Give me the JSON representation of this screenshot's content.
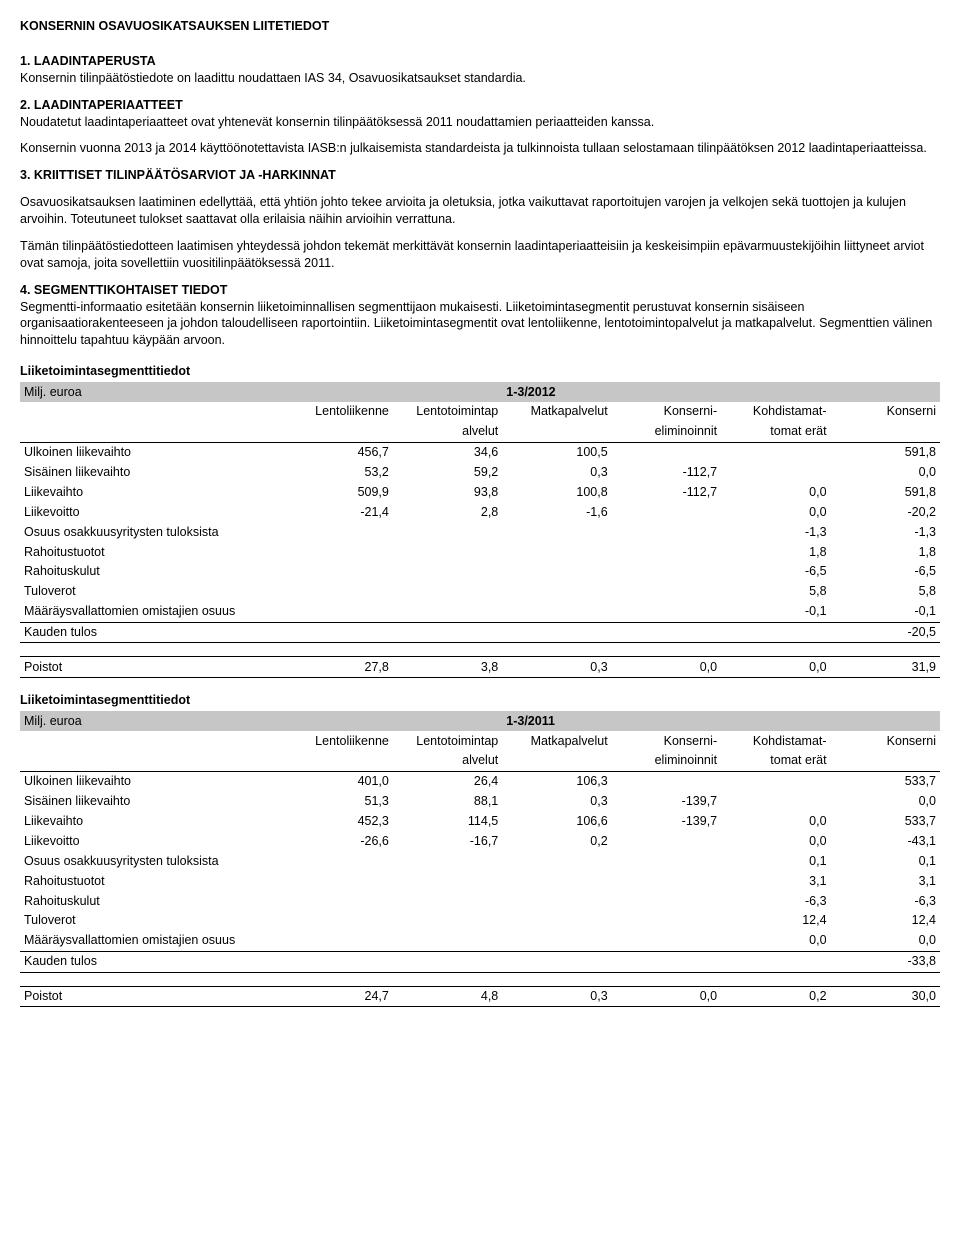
{
  "title": "KONSERNIN OSAVUOSIKATSAUKSEN LIITETIEDOT",
  "sec1": {
    "head": "1. LAADINTAPERUSTA",
    "p1": "Konsernin tilinpäätöstiedote on laadittu noudattaen IAS 34, Osavuosikatsaukset standardia."
  },
  "sec2": {
    "head": "2. LAADINTAPERIAATTEET",
    "p1": "Noudatetut laadintaperiaatteet ovat yhtenevät konsernin tilinpäätöksessä 2011 noudattamien periaatteiden kanssa.",
    "p2": "Konsernin vuonna 2013 ja 2014 käyttöönotettavista IASB:n julkaisemista standardeista ja tulkinnoista tullaan selostamaan tilinpäätöksen 2012 laadintaperiaatteissa."
  },
  "sec3": {
    "head": "3. KRIITTISET TILINPÄÄTÖSARVIOT JA -HARKINNAT",
    "p1": "Osavuosikatsauksen laatiminen edellyttää, että yhtiön johto tekee arvioita ja oletuksia, jotka vaikuttavat raportoitujen varojen ja velkojen sekä tuottojen ja kulujen arvoihin. Toteutuneet tulokset saattavat olla erilaisia näihin arvioihin verrattuna.",
    "p2": "Tämän tilinpäätöstiedotteen laatimisen yhteydessä johdon tekemät merkittävät konsernin laadintaperiaatteisiin ja keskeisimpiin epävarmuustekijöihin liittyneet arviot ovat samoja, joita sovellettiin vuositilinpäätöksessä 2011."
  },
  "sec4": {
    "head": "4. SEGMENTTIKOHTAISET TIEDOT",
    "p1": "Segmentti-informaatio esitetään konsernin liiketoiminnallisen segmenttijaon mukaisesti. Liiketoimintasegmentit perustuvat konsernin sisäiseen organisaatiorakenteeseen ja johdon taloudelliseen raportointiin. Liiketoimintasegmentit ovat lentoliikenne, lentotoimintopalvelut ja matkapalvelut. Segmenttien välinen hinnoittelu tapahtuu käypään arvoon."
  },
  "segLabels": {
    "title": "Liiketoimintasegmenttitiedot",
    "unit": "Milj. euroa",
    "cols": {
      "lento": "Lentoliikenne",
      "palv1": "Lentotoimintap",
      "palv2": "alvelut",
      "matka": "Matkapalvelut",
      "kons1": "Konserni-",
      "kons2": "eliminoinnit",
      "kohd1": "Kohdistamat-",
      "kohd2": "tomat erät",
      "konserni": "Konserni"
    }
  },
  "rowsLabels": {
    "ulk": "Ulkoinen liikevaihto",
    "sis": "Sisäinen liikevaihto",
    "liikevaihto": "Liikevaihto",
    "liikevoitto": "Liikevoitto",
    "osuus": "Osuus osakkuusyritysten tuloksista",
    "rahtuot": "Rahoitustuotot",
    "rahkul": "Rahoituskulut",
    "tuloverot": "Tuloverot",
    "maar": "Määräysvallattomien omistajien osuus",
    "kauden": "Kauden tulos",
    "poistot": "Poistot"
  },
  "seg2012": {
    "period": "1-3/2012",
    "ulk": [
      "456,7",
      "34,6",
      "100,5",
      "",
      "",
      "591,8"
    ],
    "sis": [
      "53,2",
      "59,2",
      "0,3",
      "-112,7",
      "",
      "0,0"
    ],
    "liikevaihto": [
      "509,9",
      "93,8",
      "100,8",
      "-112,7",
      "0,0",
      "591,8"
    ],
    "liikevoitto": [
      "-21,4",
      "2,8",
      "-1,6",
      "",
      "0,0",
      "-20,2"
    ],
    "osuus": [
      "",
      "",
      "",
      "",
      "-1,3",
      "-1,3"
    ],
    "rahtuot": [
      "",
      "",
      "",
      "",
      "1,8",
      "1,8"
    ],
    "rahkul": [
      "",
      "",
      "",
      "",
      "-6,5",
      "-6,5"
    ],
    "tuloverot": [
      "",
      "",
      "",
      "",
      "5,8",
      "5,8"
    ],
    "maar": [
      "",
      "",
      "",
      "",
      "-0,1",
      "-0,1"
    ],
    "kauden": [
      "",
      "",
      "",
      "",
      "",
      "-20,5"
    ],
    "poistot": [
      "27,8",
      "3,8",
      "0,3",
      "0,0",
      "0,0",
      "31,9"
    ]
  },
  "seg2011": {
    "period": "1-3/2011",
    "ulk": [
      "401,0",
      "26,4",
      "106,3",
      "",
      "",
      "533,7"
    ],
    "sis": [
      "51,3",
      "88,1",
      "0,3",
      "-139,7",
      "",
      "0,0"
    ],
    "liikevaihto": [
      "452,3",
      "114,5",
      "106,6",
      "-139,7",
      "0,0",
      "533,7"
    ],
    "liikevoitto": [
      "-26,6",
      "-16,7",
      "0,2",
      "",
      "0,0",
      "-43,1"
    ],
    "osuus": [
      "",
      "",
      "",
      "",
      "0,1",
      "0,1"
    ],
    "rahtuot": [
      "",
      "",
      "",
      "",
      "3,1",
      "3,1"
    ],
    "rahkul": [
      "",
      "",
      "",
      "",
      "-6,3",
      "-6,3"
    ],
    "tuloverot": [
      "",
      "",
      "",
      "",
      "12,4",
      "12,4"
    ],
    "maar": [
      "",
      "",
      "",
      "",
      "0,0",
      "0,0"
    ],
    "kauden": [
      "",
      "",
      "",
      "",
      "",
      "-33,8"
    ],
    "poistot": [
      "24,7",
      "4,8",
      "0,3",
      "0,0",
      "0,2",
      "30,0"
    ]
  }
}
